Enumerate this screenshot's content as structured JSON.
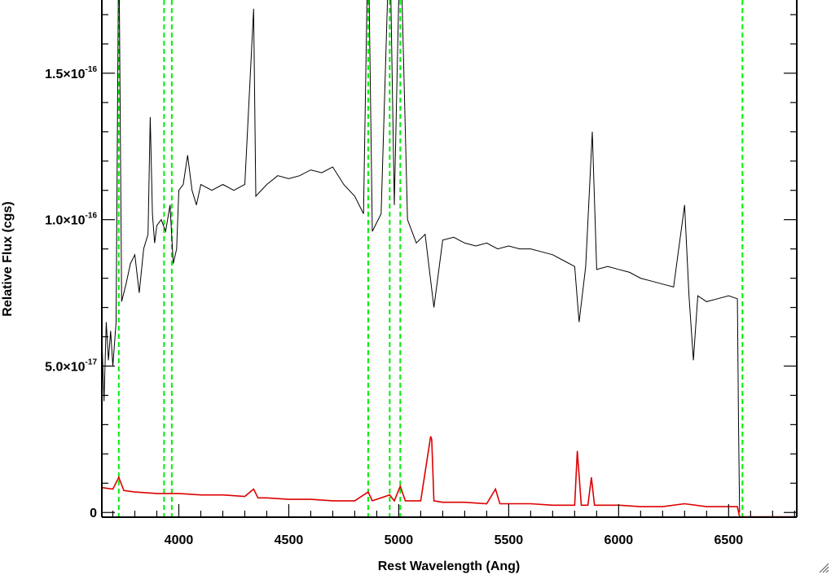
{
  "chart_data": {
    "type": "line",
    "xlabel": "Rest Wavelength (Ang)",
    "ylabel": "Relative Flux (cgs)",
    "xlim": [
      3650,
      6810
    ],
    "ylim": [
      -1.6e-18,
      1.75e-16
    ],
    "x_ticks": [
      {
        "value": 4000,
        "label": "4000"
      },
      {
        "value": 4500,
        "label": "4500"
      },
      {
        "value": 5000,
        "label": "5000"
      },
      {
        "value": 5500,
        "label": "5500"
      },
      {
        "value": 6000,
        "label": "6000"
      },
      {
        "value": 6500,
        "label": "6500"
      }
    ],
    "y_ticks": [
      {
        "value": 0,
        "mantissa": "0",
        "exponent": ""
      },
      {
        "value": 5e-17,
        "mantissa": "5.0×10",
        "exponent": "-17"
      },
      {
        "value": 1e-16,
        "mantissa": "1.0×10",
        "exponent": "-16"
      },
      {
        "value": 1.5e-16,
        "mantissa": "1.5×10",
        "exponent": "-16"
      }
    ],
    "y_minor_step": 1e-17,
    "x_minor_step": 100,
    "vertical_lines": {
      "color": "#00ee00",
      "style": "dashed",
      "x": [
        3727,
        3933,
        3968,
        4861,
        4959,
        5007,
        6563
      ]
    },
    "series": [
      {
        "color": "#000000",
        "x": [
          3650,
          3660,
          3670,
          3680,
          3690,
          3700,
          3715,
          3727,
          3740,
          3760,
          3780,
          3800,
          3820,
          3840,
          3860,
          3870,
          3880,
          3890,
          3900,
          3920,
          3940,
          3960,
          3975,
          3990,
          4000,
          4020,
          4040,
          4060,
          4080,
          4100,
          4150,
          4200,
          4250,
          4300,
          4340,
          4350,
          4400,
          4450,
          4500,
          4550,
          4600,
          4650,
          4700,
          4750,
          4800,
          4840,
          4861,
          4880,
          4920,
          4959,
          4980,
          5007,
          5040,
          5080,
          5120,
          5160,
          5200,
          5250,
          5300,
          5350,
          5400,
          5450,
          5500,
          5550,
          5600,
          5650,
          5700,
          5750,
          5800,
          5820,
          5850,
          5880,
          5900,
          5950,
          6000,
          6050,
          6100,
          6150,
          6200,
          6250,
          6300,
          6320,
          6340,
          6360,
          6400,
          6450,
          6500,
          6540,
          6545,
          6550
        ],
        "y": [
          6e-17,
          3.8e-17,
          6.5e-17,
          5.2e-17,
          6.2e-17,
          5e-17,
          6.5e-17,
          2e-16,
          7.2e-17,
          7.8e-17,
          8.5e-17,
          8.8e-17,
          7.5e-17,
          9e-17,
          9.5e-17,
          1.35e-16,
          1.02e-16,
          9.2e-17,
          9.8e-17,
          1e-16,
          9.6e-17,
          1.05e-16,
          8.5e-17,
          9e-17,
          1.1e-16,
          1.12e-16,
          1.22e-16,
          1.1e-16,
          1.05e-16,
          1.12e-16,
          1.1e-16,
          1.12e-16,
          1.1e-16,
          1.12e-16,
          1.72e-16,
          1.08e-16,
          1.12e-16,
          1.15e-16,
          1.14e-16,
          1.15e-16,
          1.17e-16,
          1.16e-16,
          1.18e-16,
          1.12e-16,
          1.08e-16,
          1.02e-16,
          2e-16,
          9.6e-17,
          1.02e-16,
          2e-16,
          1.05e-16,
          2e-16,
          1e-16,
          9.2e-17,
          9.5e-17,
          7e-17,
          9.3e-17,
          9.4e-17,
          9.2e-17,
          9.1e-17,
          9.2e-17,
          9e-17,
          9.1e-17,
          9e-17,
          9e-17,
          8.9e-17,
          8.8e-17,
          8.6e-17,
          8.4e-17,
          6.5e-17,
          8.4e-17,
          1.3e-16,
          8.3e-17,
          8.4e-17,
          8.3e-17,
          8.2e-17,
          8e-17,
          7.9e-17,
          7.8e-17,
          7.7e-17,
          1.05e-16,
          7.4e-17,
          5.2e-17,
          7.4e-17,
          7.2e-17,
          7.3e-17,
          7.4e-17,
          7.3e-17,
          3e-17,
          0
        ]
      },
      {
        "color": "#dd0000",
        "x": [
          3650,
          3700,
          3727,
          3750,
          3800,
          3900,
          4000,
          4100,
          4200,
          4300,
          4340,
          4360,
          4400,
          4500,
          4600,
          4700,
          4800,
          4861,
          4880,
          4959,
          4980,
          5007,
          5030,
          5100,
          5145,
          5150,
          5160,
          5200,
          5300,
          5400,
          5440,
          5460,
          5500,
          5600,
          5700,
          5800,
          5812,
          5830,
          5860,
          5876,
          5890,
          5950,
          6000,
          6100,
          6200,
          6300,
          6400,
          6500,
          6540,
          6550,
          6650,
          6810
        ],
        "y": [
          8.5e-18,
          8e-18,
          1.2e-17,
          7.5e-18,
          7e-18,
          6.5e-18,
          6.5e-18,
          6e-18,
          6e-18,
          5.5e-18,
          8e-18,
          5e-18,
          5e-18,
          4.5e-18,
          4.5e-18,
          4e-18,
          4e-18,
          7e-18,
          4e-18,
          6e-18,
          4e-18,
          9e-18,
          4e-18,
          4e-18,
          2.6e-17,
          2.5e-17,
          4e-18,
          3.5e-18,
          3.5e-18,
          3e-18,
          8e-18,
          3e-18,
          3e-18,
          3e-18,
          2.5e-18,
          2.5e-18,
          2.1e-17,
          2.5e-18,
          2.5e-18,
          1.2e-17,
          2.5e-18,
          2.5e-18,
          2.5e-18,
          2e-18,
          2e-18,
          3e-18,
          2e-18,
          2e-18,
          2e-18,
          -1.5e-18,
          -1.5e-18,
          -1.5e-18
        ]
      }
    ]
  },
  "window": {
    "resize_grip_icon": "resize-grip-icon"
  }
}
